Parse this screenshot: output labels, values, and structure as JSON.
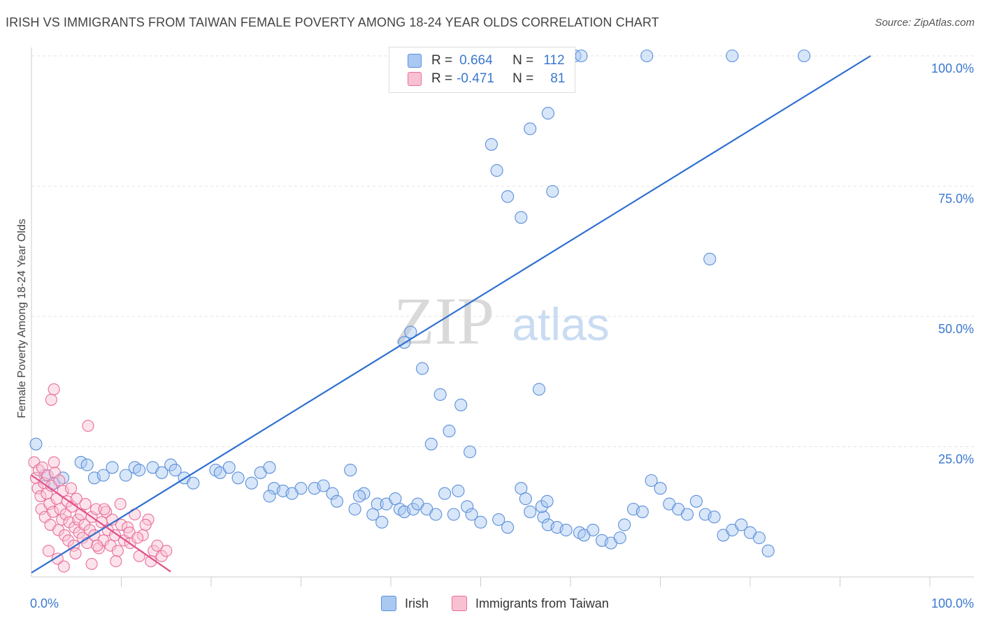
{
  "title": "IRISH VS IMMIGRANTS FROM TAIWAN FEMALE POVERTY AMONG 18-24 YEAR OLDS CORRELATION CHART",
  "source": "Source: ZipAtlas.com",
  "watermark": {
    "zip": "ZIP",
    "atlas": "atlas"
  },
  "legend": {
    "r_label": "R =",
    "n_label": "N =",
    "rows": [
      {
        "r": "0.664",
        "n": "112",
        "color": "#a9c8f2",
        "border": "#5b8fd9"
      },
      {
        "r": "-0.471",
        "n": "81",
        "color": "#f9c0d2",
        "border": "#e86f9a"
      }
    ]
  },
  "bottom_legend": [
    {
      "label": "Irish",
      "color": "#a9c8f2",
      "border": "#5b8fd9"
    },
    {
      "label": "Immigrants from Taiwan",
      "color": "#f9c0d2",
      "border": "#e86f9a"
    }
  ],
  "chart_data": {
    "type": "scatter",
    "title": "IRISH VS IMMIGRANTS FROM TAIWAN FEMALE POVERTY AMONG 18-24 YEAR OLDS CORRELATION CHART",
    "xlabel": "",
    "ylabel": "Female Poverty Among 18-24 Year Olds",
    "xlim": [
      0,
      100
    ],
    "ylim": [
      0,
      100
    ],
    "x_tick_labels": [
      "0.0%",
      "100.0%"
    ],
    "y_ticks": [
      25,
      50,
      75,
      100
    ],
    "y_tick_labels": [
      "25.0%",
      "50.0%",
      "75.0%",
      "100.0%"
    ],
    "grid": true,
    "series": [
      {
        "name": "Irish",
        "color": "#a9c8f2",
        "stroke": "#5b8fd9",
        "trend": {
          "x": [
            0,
            93.4
          ],
          "y": [
            0.8,
            100
          ]
        },
        "points": [
          [
            0.5,
            25.5
          ],
          [
            1.5,
            19.5
          ],
          [
            2.5,
            18
          ],
          [
            3.5,
            19
          ],
          [
            5.5,
            22
          ],
          [
            6.2,
            21.5
          ],
          [
            7,
            19
          ],
          [
            8,
            19.5
          ],
          [
            9,
            21
          ],
          [
            10.5,
            19.5
          ],
          [
            11.5,
            21
          ],
          [
            12,
            20.5
          ],
          [
            13.5,
            21
          ],
          [
            14.5,
            20
          ],
          [
            15.5,
            21.5
          ],
          [
            16,
            20.5
          ],
          [
            17,
            19
          ],
          [
            18,
            18
          ],
          [
            20.5,
            20.5
          ],
          [
            21,
            20
          ],
          [
            22,
            21
          ],
          [
            23,
            19
          ],
          [
            24.5,
            18
          ],
          [
            25.5,
            20
          ],
          [
            26.5,
            21
          ],
          [
            27,
            17
          ],
          [
            28,
            16.5
          ],
          [
            30,
            17
          ],
          [
            31.5,
            17
          ],
          [
            32.5,
            17.5
          ],
          [
            33.5,
            16
          ],
          [
            36,
            13
          ],
          [
            37,
            16
          ],
          [
            38.5,
            14
          ],
          [
            39.5,
            14
          ],
          [
            40.5,
            15
          ],
          [
            41,
            13
          ],
          [
            41.5,
            12.5
          ],
          [
            42.5,
            13
          ],
          [
            43,
            14
          ],
          [
            44,
            13
          ],
          [
            45,
            12
          ],
          [
            46,
            16
          ],
          [
            47,
            12
          ],
          [
            47.5,
            16.5
          ],
          [
            48.5,
            13.5
          ],
          [
            49,
            12
          ],
          [
            50,
            10.5
          ],
          [
            52,
            11
          ],
          [
            53,
            9.5
          ],
          [
            54.5,
            17
          ],
          [
            55,
            15
          ],
          [
            55.5,
            12.5
          ],
          [
            57,
            11.5
          ],
          [
            57.5,
            10
          ],
          [
            58.5,
            9.5
          ],
          [
            59.5,
            9
          ],
          [
            61,
            8.5
          ],
          [
            61.5,
            8
          ],
          [
            62.5,
            9
          ],
          [
            63.5,
            7
          ],
          [
            64.5,
            6.5
          ],
          [
            65.5,
            7.5
          ],
          [
            66,
            10
          ],
          [
            67,
            13
          ],
          [
            68,
            12.5
          ],
          [
            69,
            18.5
          ],
          [
            70,
            17
          ],
          [
            71,
            14
          ],
          [
            72,
            13
          ],
          [
            73,
            12
          ],
          [
            74,
            14.5
          ],
          [
            75,
            12
          ],
          [
            76,
            11.5
          ],
          [
            77,
            8
          ],
          [
            78,
            9
          ],
          [
            79,
            10
          ],
          [
            80,
            8.5
          ],
          [
            81,
            7.5
          ],
          [
            82,
            5
          ],
          [
            26.5,
            15.5
          ],
          [
            29,
            16
          ],
          [
            34,
            14.5
          ],
          [
            35.5,
            20.5
          ],
          [
            36.5,
            15.5
          ],
          [
            38,
            12
          ],
          [
            39,
            10.5
          ],
          [
            41.5,
            45
          ],
          [
            42.2,
            47
          ],
          [
            43.5,
            40
          ],
          [
            44.5,
            25.5
          ],
          [
            45.5,
            35
          ],
          [
            46.5,
            28
          ],
          [
            47.8,
            33
          ],
          [
            48.8,
            24
          ],
          [
            51.8,
            78
          ],
          [
            51.2,
            83
          ],
          [
            53,
            73
          ],
          [
            54.5,
            69
          ],
          [
            55.5,
            86
          ],
          [
            57.5,
            89
          ],
          [
            58,
            74
          ],
          [
            60.5,
            100
          ],
          [
            61.2,
            100
          ],
          [
            78,
            100
          ],
          [
            86,
            100
          ],
          [
            75.5,
            61
          ],
          [
            56.5,
            36
          ],
          [
            56.8,
            13.5
          ],
          [
            57.4,
            14.5
          ],
          [
            68.5,
            100
          ]
        ]
      },
      {
        "name": "Immigrants from Taiwan",
        "color": "#f9c0d2",
        "stroke": "#e86f9a",
        "trend": {
          "x": [
            0,
            15.5
          ],
          "y": [
            19.5,
            1
          ]
        },
        "points": [
          [
            0.3,
            22
          ],
          [
            0.5,
            19
          ],
          [
            0.7,
            17
          ],
          [
            0.8,
            20.5
          ],
          [
            1,
            15.5
          ],
          [
            1.1,
            13
          ],
          [
            1.2,
            21
          ],
          [
            1.4,
            18
          ],
          [
            1.5,
            11.5
          ],
          [
            1.7,
            16
          ],
          [
            1.8,
            19.5
          ],
          [
            2,
            14
          ],
          [
            2.1,
            10
          ],
          [
            2.2,
            17.5
          ],
          [
            2.4,
            12.5
          ],
          [
            2.5,
            22
          ],
          [
            2.6,
            20
          ],
          [
            2.8,
            15
          ],
          [
            3,
            9
          ],
          [
            3.1,
            18.5
          ],
          [
            3.2,
            13
          ],
          [
            3.4,
            11
          ],
          [
            3.5,
            16.5
          ],
          [
            3.7,
            8
          ],
          [
            3.8,
            12
          ],
          [
            4,
            14.5
          ],
          [
            4.1,
            7
          ],
          [
            4.2,
            10.5
          ],
          [
            4.4,
            17
          ],
          [
            4.5,
            13.5
          ],
          [
            4.7,
            6
          ],
          [
            4.8,
            9.5
          ],
          [
            5,
            15
          ],
          [
            5.2,
            11
          ],
          [
            5.3,
            8.5
          ],
          [
            5.5,
            12
          ],
          [
            5.7,
            7.5
          ],
          [
            5.9,
            10
          ],
          [
            6,
            14
          ],
          [
            6.2,
            6.5
          ],
          [
            6.5,
            9
          ],
          [
            6.7,
            11.5
          ],
          [
            7,
            8
          ],
          [
            7.2,
            13
          ],
          [
            7.5,
            5.5
          ],
          [
            7.8,
            10.5
          ],
          [
            8,
            7
          ],
          [
            8.3,
            12.5
          ],
          [
            8.5,
            9
          ],
          [
            8.8,
            6
          ],
          [
            9,
            11
          ],
          [
            9.3,
            8
          ],
          [
            9.6,
            5
          ],
          [
            10,
            10
          ],
          [
            10.3,
            7
          ],
          [
            10.7,
            9.5
          ],
          [
            11,
            6.5
          ],
          [
            11.5,
            12
          ],
          [
            12,
            4
          ],
          [
            12.4,
            8
          ],
          [
            13,
            11
          ],
          [
            13.6,
            5
          ],
          [
            14,
            6
          ],
          [
            14.5,
            4
          ],
          [
            15,
            5
          ],
          [
            2.2,
            34
          ],
          [
            2.5,
            36
          ],
          [
            6.3,
            29
          ],
          [
            1.9,
            5
          ],
          [
            2.9,
            3.5
          ],
          [
            3.6,
            2
          ],
          [
            4.9,
            4.5
          ],
          [
            6.7,
            2.5
          ],
          [
            7.3,
            6
          ],
          [
            8.1,
            13
          ],
          [
            9.4,
            3
          ],
          [
            9.9,
            14
          ],
          [
            10.9,
            8.5
          ],
          [
            11.8,
            7.5
          ],
          [
            12.7,
            10
          ],
          [
            13.3,
            3
          ]
        ]
      }
    ]
  }
}
